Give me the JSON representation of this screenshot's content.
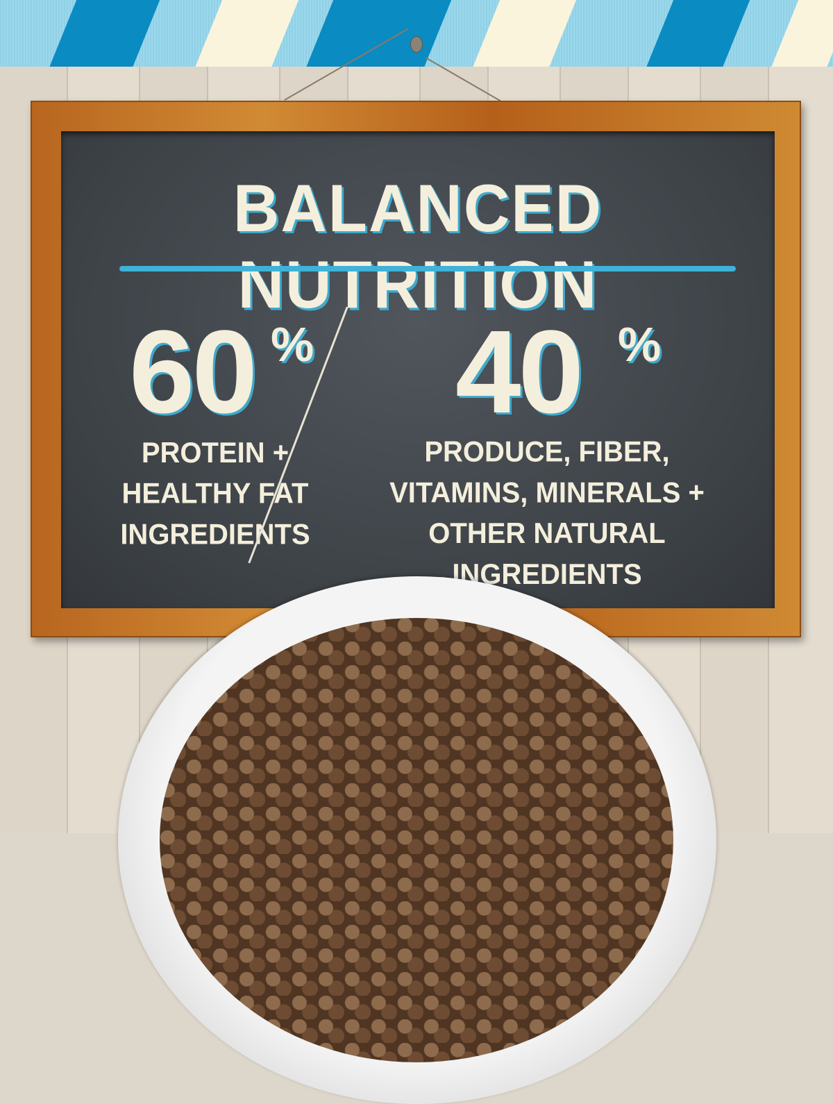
{
  "colors": {
    "accent_blue": "#3fb2d9",
    "chalk": "#f4efdc",
    "board": "#3d4247",
    "frame": "#c27a2b",
    "cloth_dark": "#0a8bc2",
    "cloth_light": "#faf4dc"
  },
  "board": {
    "title": "BALANCED NUTRITION",
    "left": {
      "value": "60",
      "unit": "%",
      "lines": [
        "PROTEIN +",
        "HEALTHY FAT",
        "INGREDIENTS"
      ]
    },
    "right": {
      "value": "40",
      "unit": "%",
      "lines": [
        "PRODUCE, FIBER,",
        "VITAMINS, MINERALS +",
        "OTHER NATURAL INGREDIENTS"
      ]
    }
  },
  "icons": {
    "nail": "nail-icon",
    "bowl": "kibble-bowl"
  }
}
